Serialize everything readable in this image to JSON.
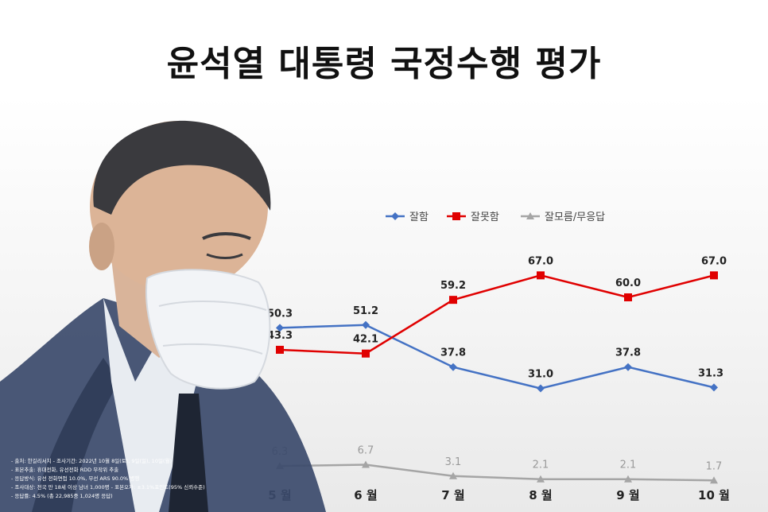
{
  "title": "윤석열 대통령 국정수행 평가",
  "chart_data": {
    "type": "line",
    "title": "윤석열 대통령 국정수행 평가",
    "categories": [
      "5 월",
      "6 월",
      "7 월",
      "8 월",
      "9 월",
      "10 월"
    ],
    "series": [
      {
        "name": "잘함",
        "color": "#4472c4",
        "marker": "diamond",
        "values": [
          50.3,
          51.2,
          37.8,
          31.0,
          37.8,
          31.3
        ]
      },
      {
        "name": "잘못함",
        "color": "#e00000",
        "marker": "square",
        "values": [
          43.3,
          42.1,
          59.2,
          67.0,
          60.0,
          67.0
        ]
      },
      {
        "name": "잘모름/무응답",
        "color": "#a5a5a5",
        "marker": "triangle",
        "values": [
          6.3,
          6.7,
          3.1,
          2.1,
          2.1,
          1.7
        ]
      }
    ],
    "ylim": [
      0,
      80
    ],
    "legend": "top-right",
    "grid": false
  },
  "notes": [
    "- 출처: 한길리서치 - 조사기간: 2022년 10월 8일(토), 9일(일), 10일(월)",
    "- 표본추출: 휴대전화, 유선전화 RDD 무작위 추출",
    "- 응답방식: 유선 전화면접 10.0%, 무선 ARS 90.0% 병행",
    "- 조사대상: 전국 만 18세 이상 남녀 1,000명 - 표본오차: ±3.1%포인트(95% 신뢰수준)",
    "- 응답률: 4.5% (총 22,985중 1,024명 응답)"
  ]
}
